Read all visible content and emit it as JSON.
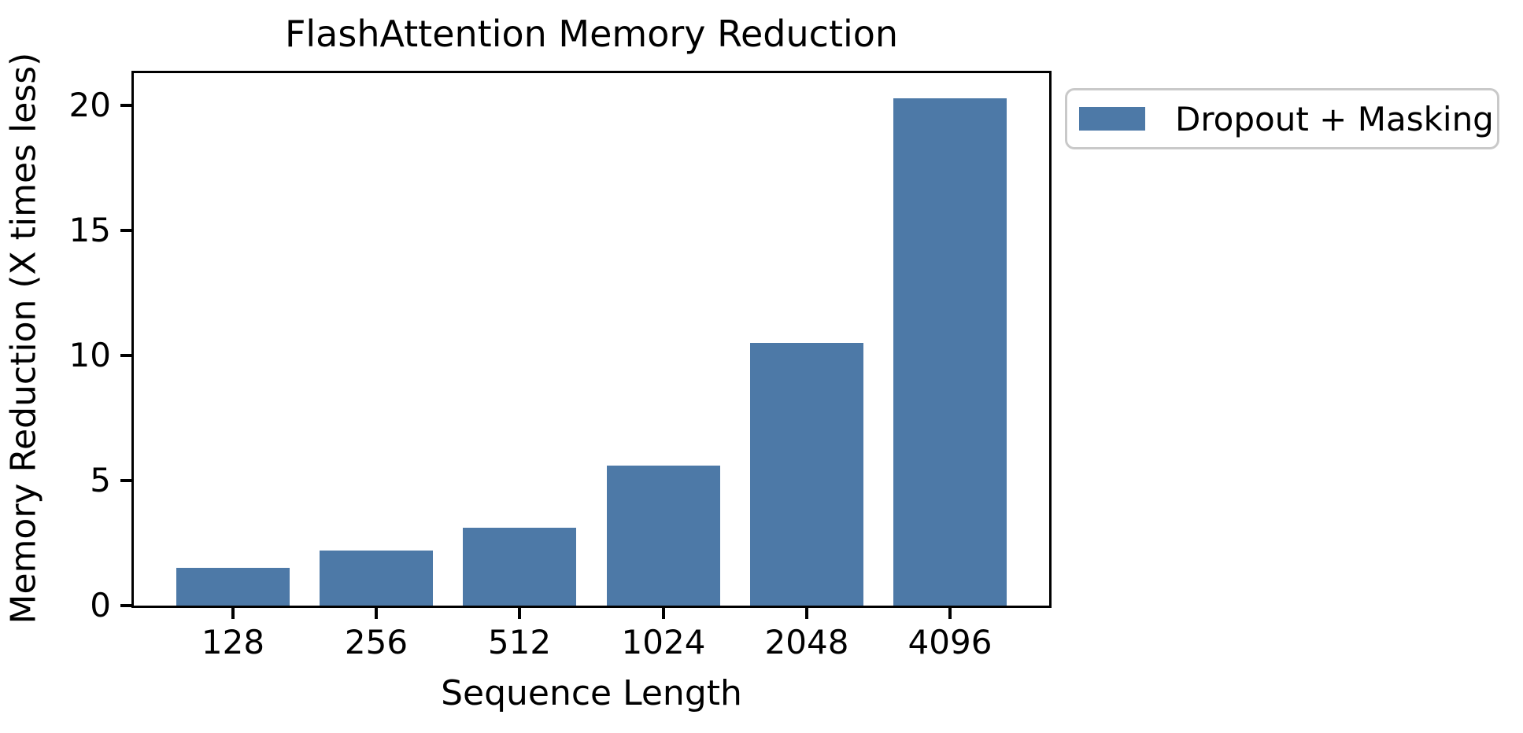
{
  "chart_data": {
    "type": "bar",
    "title": "FlashAttention Memory Reduction",
    "xlabel": "Sequence Length",
    "ylabel": "Memory Reduction (X times less)",
    "categories": [
      "128",
      "256",
      "512",
      "1024",
      "2048",
      "4096"
    ],
    "values": [
      1.5,
      2.2,
      3.1,
      5.6,
      10.5,
      20.3
    ],
    "yticks": [
      0,
      5,
      10,
      15,
      20
    ],
    "ylim": [
      0,
      21.3
    ],
    "grid": false,
    "legend": {
      "entries": [
        "Dropout + Masking"
      ],
      "position": "upper right, outside plot"
    },
    "colors": {
      "bar": "#4d79a7",
      "spine": "#000000",
      "legend_border": "#c9c9c9",
      "background": "#ffffff"
    }
  }
}
